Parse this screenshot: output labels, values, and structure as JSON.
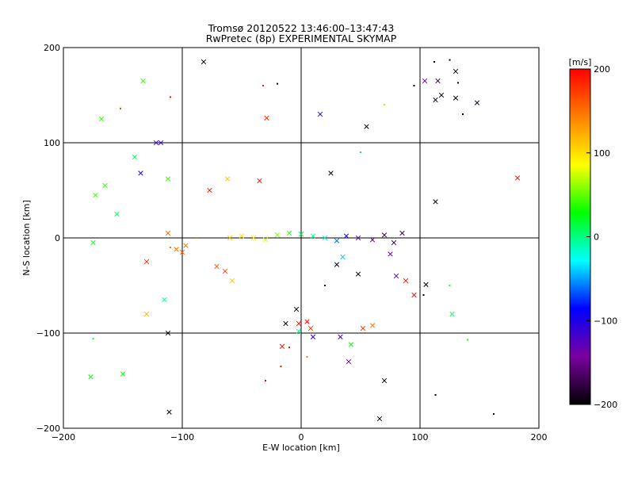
{
  "chart_data": {
    "type": "scatter",
    "title": "Tromsø 20120522 13:46:00–13:47:43",
    "subtitle": "RwPretec (8p) EXPERIMENTAL SKYMAP",
    "xlabel": "E-W location [km]",
    "ylabel": "N-S location [km]",
    "xlim": [
      -200,
      200
    ],
    "ylim": [
      -200,
      200
    ],
    "x_ticks": [
      -200,
      -100,
      0,
      100,
      200
    ],
    "y_ticks": [
      -200,
      -100,
      0,
      100,
      200
    ],
    "grid": true,
    "colorbar": {
      "label": "[m/s]",
      "range": [
        -200,
        200
      ],
      "ticks": [
        200,
        100,
        0,
        -100,
        -200
      ],
      "colormap": [
        "#000000",
        "#7a00a0",
        "#0000ff",
        "#00ffff",
        "#00ff00",
        "#ffff00",
        "#ff8000",
        "#ff0000"
      ]
    },
    "points": [
      [
        -82,
        185,
        -200,
        "x"
      ],
      [
        -20,
        162,
        -210,
        "."
      ],
      [
        112,
        185,
        -200,
        "."
      ],
      [
        125,
        187,
        -210,
        "."
      ],
      [
        130,
        175,
        -200,
        "x"
      ],
      [
        115,
        165,
        -180,
        "x"
      ],
      [
        118,
        150,
        -200,
        "x"
      ],
      [
        113,
        145,
        -190,
        "x"
      ],
      [
        130,
        147,
        -200,
        "x"
      ],
      [
        148,
        142,
        -190,
        "x"
      ],
      [
        132,
        163,
        -200,
        "."
      ],
      [
        136,
        130,
        -210,
        "."
      ],
      [
        104,
        165,
        -150,
        "x"
      ],
      [
        -133,
        165,
        40,
        "x"
      ],
      [
        -168,
        125,
        40,
        "x"
      ],
      [
        -152,
        136,
        180,
        "."
      ],
      [
        -110,
        148,
        190,
        "."
      ],
      [
        -29,
        126,
        180,
        "x"
      ],
      [
        -32,
        160,
        190,
        "."
      ],
      [
        16,
        130,
        -100,
        "x"
      ],
      [
        55,
        117,
        -200,
        "x"
      ],
      [
        -118,
        100,
        -110,
        "x"
      ],
      [
        -122,
        100,
        -120,
        "x"
      ],
      [
        -140,
        85,
        10,
        "x"
      ],
      [
        -135,
        68,
        -90,
        "x"
      ],
      [
        -112,
        62,
        40,
        "x"
      ],
      [
        -165,
        55,
        40,
        "x"
      ],
      [
        -173,
        45,
        40,
        "x"
      ],
      [
        -155,
        25,
        10,
        "x"
      ],
      [
        -77,
        50,
        190,
        "x"
      ],
      [
        -62,
        62,
        110,
        "x"
      ],
      [
        -35,
        60,
        190,
        "x"
      ],
      [
        25,
        68,
        -200,
        "x"
      ],
      [
        113,
        38,
        -210,
        "x"
      ],
      [
        182,
        63,
        190,
        "x"
      ],
      [
        -105,
        -12,
        150,
        "x"
      ],
      [
        -100,
        -15,
        160,
        "x"
      ],
      [
        -97,
        -8,
        150,
        "x"
      ],
      [
        -110,
        -10,
        155,
        "."
      ],
      [
        -175,
        -5,
        20,
        "x"
      ],
      [
        -130,
        -25,
        180,
        "x"
      ],
      [
        -115,
        -65,
        0,
        "x"
      ],
      [
        -130,
        -80,
        120,
        "x"
      ],
      [
        -64,
        -35,
        170,
        "x"
      ],
      [
        -58,
        -45,
        110,
        "x"
      ],
      [
        -71,
        -30,
        160,
        "x"
      ],
      [
        -112,
        -100,
        -200,
        "x"
      ],
      [
        -111,
        -183,
        -200,
        "x"
      ],
      [
        -177,
        -146,
        30,
        "x"
      ],
      [
        -150,
        -143,
        30,
        "x"
      ],
      [
        -175,
        -106,
        20,
        "."
      ],
      [
        -30,
        -150,
        200,
        "."
      ],
      [
        -16,
        -114,
        190,
        "x"
      ],
      [
        -17,
        -135,
        195,
        "."
      ],
      [
        -10,
        -115,
        200,
        "."
      ],
      [
        5,
        -125,
        150,
        "."
      ],
      [
        -2,
        -90,
        210,
        "x"
      ],
      [
        5,
        -88,
        200,
        "x"
      ],
      [
        8,
        -95,
        180,
        "x"
      ],
      [
        -13,
        -90,
        -200,
        "x"
      ],
      [
        -4,
        -75,
        -210,
        "x"
      ],
      [
        -2,
        -98,
        0,
        "x"
      ],
      [
        10,
        -104,
        -110,
        "x"
      ],
      [
        33,
        -104,
        -120,
        "x"
      ],
      [
        40,
        -130,
        -130,
        "x"
      ],
      [
        42,
        -112,
        30,
        "x"
      ],
      [
        52,
        -95,
        180,
        "x"
      ],
      [
        60,
        -92,
        150,
        "x"
      ],
      [
        70,
        -150,
        -200,
        "x"
      ],
      [
        66,
        -190,
        -210,
        "x"
      ],
      [
        113,
        -165,
        -200,
        "."
      ],
      [
        162,
        -185,
        -200,
        "."
      ],
      [
        127,
        -80,
        10,
        "x"
      ],
      [
        125,
        -50,
        20,
        "."
      ],
      [
        105,
        -49,
        -200,
        "x"
      ],
      [
        103,
        -60,
        -210,
        "."
      ],
      [
        48,
        -38,
        -190,
        "x"
      ],
      [
        20,
        -50,
        -180,
        "."
      ],
      [
        30,
        -28,
        -200,
        "x"
      ],
      [
        75,
        -17,
        -130,
        "x"
      ],
      [
        80,
        -40,
        -120,
        "x"
      ],
      [
        35,
        -20,
        -40,
        "x"
      ],
      [
        88,
        -45,
        190,
        "x"
      ],
      [
        95,
        -60,
        200,
        "x"
      ],
      [
        140,
        -107,
        30,
        "."
      ],
      [
        70,
        140,
        60,
        "."
      ],
      [
        95,
        160,
        -200,
        "."
      ],
      [
        50,
        90,
        -40,
        "."
      ],
      [
        -112,
        5,
        160,
        "x"
      ],
      [
        -88,
        0,
        150,
        "."
      ],
      [
        -60,
        0,
        110,
        "x"
      ],
      [
        -50,
        2,
        100,
        "x"
      ],
      [
        -40,
        0,
        90,
        "x"
      ],
      [
        -30,
        -2,
        75,
        "x"
      ],
      [
        -20,
        3,
        55,
        "x"
      ],
      [
        -10,
        5,
        35,
        "x"
      ],
      [
        0,
        4,
        15,
        "x"
      ],
      [
        10,
        2,
        0,
        "x"
      ],
      [
        20,
        0,
        -20,
        "x"
      ],
      [
        30,
        -3,
        -60,
        "x"
      ],
      [
        38,
        2,
        -90,
        "x"
      ],
      [
        48,
        0,
        -120,
        "x"
      ],
      [
        60,
        -2,
        -150,
        "x"
      ],
      [
        70,
        3,
        -170,
        "x"
      ],
      [
        78,
        -5,
        -180,
        "x"
      ],
      [
        85,
        5,
        -170,
        "x"
      ]
    ]
  }
}
